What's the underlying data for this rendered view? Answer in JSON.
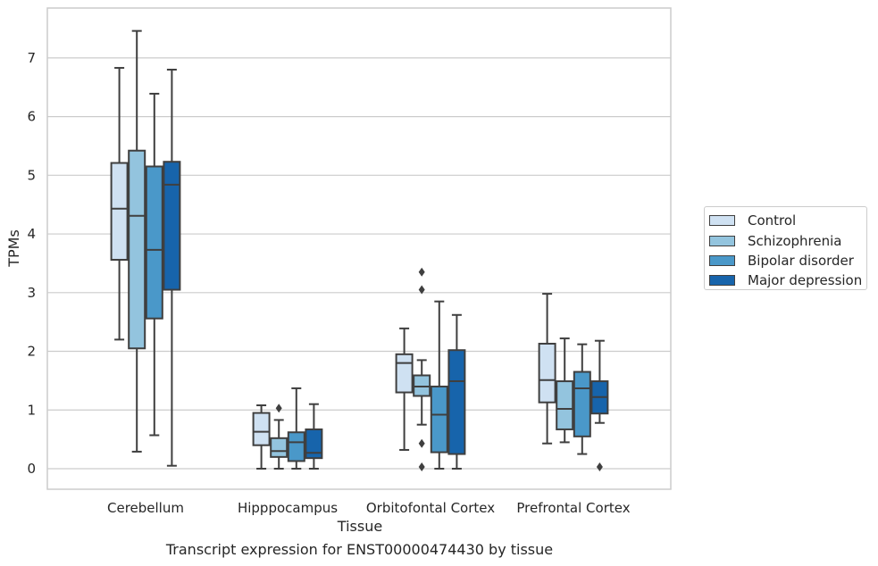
{
  "chart_data": {
    "type": "box",
    "title": "",
    "caption": "Transcript expression for ENST00000474430 by tissue",
    "xlabel": "Tissue",
    "ylabel": "TPMs",
    "ylim": [
      -0.35,
      7.85
    ],
    "yticks": [
      0,
      1,
      2,
      3,
      4,
      5,
      6,
      7
    ],
    "grid": "horizontal",
    "legend_position": "right",
    "categories": [
      "Cerebellum",
      "Hipppocampus",
      "Orbitofontal Cortex",
      "Prefrontal Cortex"
    ],
    "series": [
      {
        "name": "Control",
        "color": "#cfe1f2",
        "boxes": [
          {
            "whislo": 2.2,
            "q1": 3.56,
            "med": 4.43,
            "q3": 5.21,
            "whishi": 6.83,
            "fliers": []
          },
          {
            "whislo": 0.0,
            "q1": 0.4,
            "med": 0.63,
            "q3": 0.95,
            "whishi": 1.08,
            "fliers": []
          },
          {
            "whislo": 0.32,
            "q1": 1.3,
            "med": 1.8,
            "q3": 1.95,
            "whishi": 2.39,
            "fliers": []
          },
          {
            "whislo": 0.43,
            "q1": 1.13,
            "med": 1.51,
            "q3": 2.13,
            "whishi": 2.98,
            "fliers": []
          }
        ]
      },
      {
        "name": "Schizophrenia",
        "color": "#93c4de",
        "boxes": [
          {
            "whislo": 0.29,
            "q1": 2.05,
            "med": 4.31,
            "q3": 5.42,
            "whishi": 7.46,
            "fliers": []
          },
          {
            "whislo": 0.0,
            "q1": 0.2,
            "med": 0.3,
            "q3": 0.52,
            "whishi": 0.83,
            "fliers": [
              1.03
            ]
          },
          {
            "whislo": 0.75,
            "q1": 1.24,
            "med": 1.4,
            "q3": 1.59,
            "whishi": 1.85,
            "fliers": [
              3.35,
              3.05,
              0.43,
              0.03
            ]
          },
          {
            "whislo": 0.45,
            "q1": 0.67,
            "med": 1.02,
            "q3": 1.49,
            "whishi": 2.22,
            "fliers": []
          }
        ]
      },
      {
        "name": "Bipolar disorder",
        "color": "#4a98c9",
        "boxes": [
          {
            "whislo": 0.57,
            "q1": 2.56,
            "med": 3.73,
            "q3": 5.15,
            "whishi": 6.39,
            "fliers": []
          },
          {
            "whislo": 0.0,
            "q1": 0.13,
            "med": 0.45,
            "q3": 0.62,
            "whishi": 1.37,
            "fliers": []
          },
          {
            "whislo": 0.0,
            "q1": 0.28,
            "med": 0.92,
            "q3": 1.4,
            "whishi": 2.85,
            "fliers": []
          },
          {
            "whislo": 0.25,
            "q1": 0.55,
            "med": 1.37,
            "q3": 1.65,
            "whishi": 2.12,
            "fliers": []
          }
        ]
      },
      {
        "name": "Major depression",
        "color": "#1764ab",
        "boxes": [
          {
            "whislo": 0.05,
            "q1": 3.05,
            "med": 4.84,
            "q3": 5.23,
            "whishi": 6.8,
            "fliers": []
          },
          {
            "whislo": 0.0,
            "q1": 0.18,
            "med": 0.27,
            "q3": 0.67,
            "whishi": 1.1,
            "fliers": []
          },
          {
            "whislo": 0.0,
            "q1": 0.25,
            "med": 1.49,
            "q3": 2.02,
            "whishi": 2.62,
            "fliers": []
          },
          {
            "whislo": 0.78,
            "q1": 0.94,
            "med": 1.22,
            "q3": 1.49,
            "whishi": 2.18,
            "fliers": [
              0.03
            ]
          }
        ]
      }
    ]
  }
}
